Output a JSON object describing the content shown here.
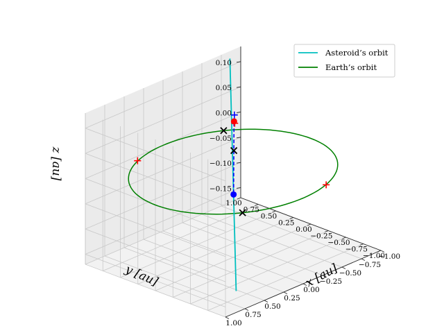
{
  "chart_data": {
    "type": "line3d",
    "title": "",
    "xlabel": "x [au]",
    "ylabel": "y [au]",
    "zlabel": "z [au]",
    "xlim": [
      -1.0,
      1.0
    ],
    "ylim": [
      -1.0,
      1.0
    ],
    "zlim": [
      -0.17,
      0.13
    ],
    "x_ticks": [
      "−1.00",
      "−0.75",
      "−0.50",
      "−0.25",
      "0.00",
      "0.25",
      "0.50",
      "0.75",
      "1.00"
    ],
    "y_ticks": [
      "−1.00",
      "−0.75",
      "−0.50",
      "−0.25",
      "0.00",
      "0.25",
      "0.50",
      "0.75",
      "1.00"
    ],
    "z_ticks": [
      "−0.15",
      "−0.10",
      "−0.05",
      "0.00",
      "0.05",
      "0.10"
    ],
    "grid": true,
    "legend_position": "top-right",
    "series": [
      {
        "name": "Asteroid’s orbit",
        "color": "#00bfbf",
        "kind": "line",
        "x": [
          -0.5,
          0.52
        ],
        "y": [
          0.6,
          -0.62
        ],
        "z": [
          0.16,
          -0.17
        ]
      },
      {
        "name": "Earth’s orbit",
        "color": "#008000",
        "kind": "circle",
        "radius": 1.0,
        "z": 0.0
      }
    ],
    "markers": [
      {
        "marker": "x",
        "color": "#000000",
        "x": -0.6,
        "y": 0.8,
        "z": 0.0
      },
      {
        "marker": "x",
        "color": "#000000",
        "x": 0.6,
        "y": -0.8,
        "z": 0.0
      },
      {
        "marker": "x",
        "color": "#000000",
        "x": -0.1,
        "y": 0.1,
        "z": 0.03
      },
      {
        "marker": "+",
        "color": "#ff0000",
        "x": 0.4,
        "y": 0.92,
        "z": 0.0
      },
      {
        "marker": "+",
        "color": "#ff0000",
        "x": -0.35,
        "y": -0.94,
        "z": 0.0
      },
      {
        "marker": "+",
        "color": "#ff0000",
        "x": -0.3,
        "y": 0.31,
        "z": 0.06
      },
      {
        "marker": "+",
        "color": "#0000ff",
        "x": -0.35,
        "y": 0.37,
        "z": 0.07
      },
      {
        "marker": "dot",
        "color": "#ff0000",
        "x": -0.31,
        "y": 0.33,
        "z": 0.062
      },
      {
        "marker": "dot",
        "color": "#0000ff",
        "x": 0.12,
        "y": -0.14,
        "z": -0.03
      }
    ],
    "dashed_segment": {
      "color": "#0000ff",
      "x": [
        -0.3,
        0.12
      ],
      "y": [
        0.32,
        -0.14
      ],
      "z": [
        0.06,
        -0.03
      ]
    }
  }
}
